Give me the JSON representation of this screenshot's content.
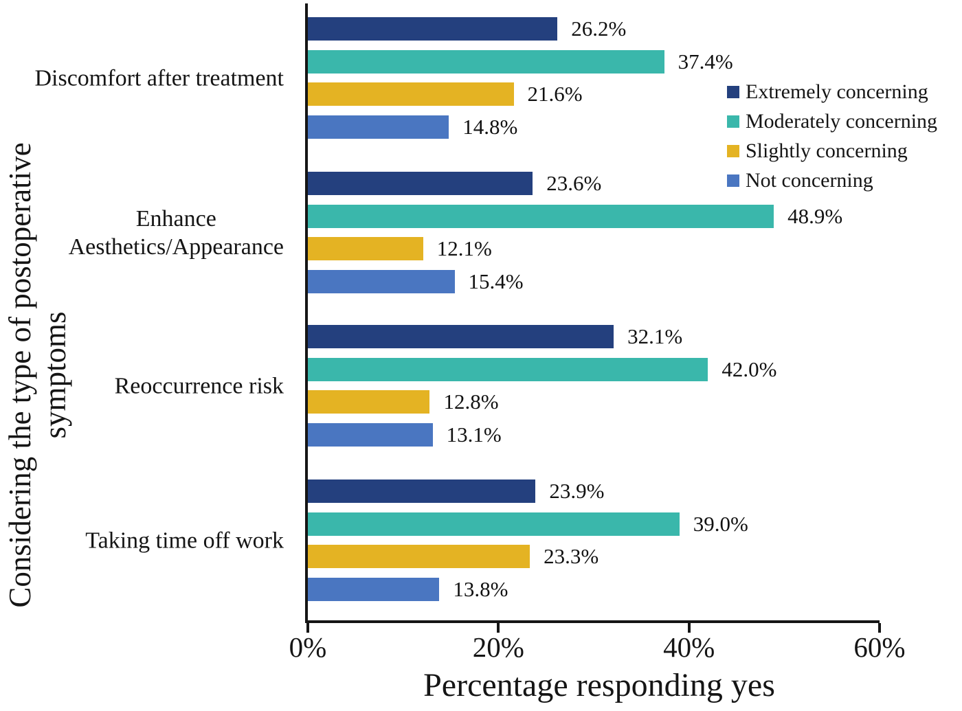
{
  "chart_data": {
    "type": "bar",
    "orientation": "horizontal",
    "title": "",
    "xlabel": "Percentage responding yes",
    "ylabel": "Considering the type of postoperative symptoms",
    "ylabel_lines": [
      "Considering the type of postoperative",
      "symptoms"
    ],
    "categories": [
      "Discomfort after treatment",
      "Enhance Aesthetics/Appearance",
      "Reoccurrence risk",
      "Taking time off work"
    ],
    "category_label_lines": [
      [
        "Discomfort after treatment"
      ],
      [
        "Enhance",
        "Aesthetics/Appearance"
      ],
      [
        "Reoccurrence risk"
      ],
      [
        "Taking time off work"
      ]
    ],
    "xlim": [
      0,
      60
    ],
    "xticks": [
      {
        "label": "0%",
        "value": 0
      },
      {
        "label": "20%",
        "value": 20
      },
      {
        "label": "40%",
        "value": 40
      },
      {
        "label": "60%",
        "value": 60
      }
    ],
    "grid": false,
    "legend_position": "upper right",
    "series": [
      {
        "name": "Extremely concerning",
        "color": "#24407E",
        "values": [
          26.2,
          23.6,
          32.1,
          23.9
        ],
        "labels": [
          "26.2%",
          "23.6%",
          "32.1%",
          "23.9%"
        ]
      },
      {
        "name": "Moderately concerning",
        "color": "#3AB7AB",
        "values": [
          37.4,
          48.9,
          42.0,
          39.0
        ],
        "labels": [
          "37.4%",
          "48.9%",
          "42.0%",
          "39.0%"
        ]
      },
      {
        "name": "Slightly concerning",
        "color": "#E4B323",
        "values": [
          21.6,
          12.1,
          12.8,
          23.3
        ],
        "labels": [
          "21.6%",
          "12.1%",
          "12.8%",
          "23.3%"
        ]
      },
      {
        "name": "Not concerning",
        "color": "#4A76C1",
        "values": [
          14.8,
          15.4,
          13.1,
          13.8
        ],
        "labels": [
          "14.8%",
          "15.4%",
          "13.1%",
          "13.8%"
        ]
      }
    ]
  }
}
